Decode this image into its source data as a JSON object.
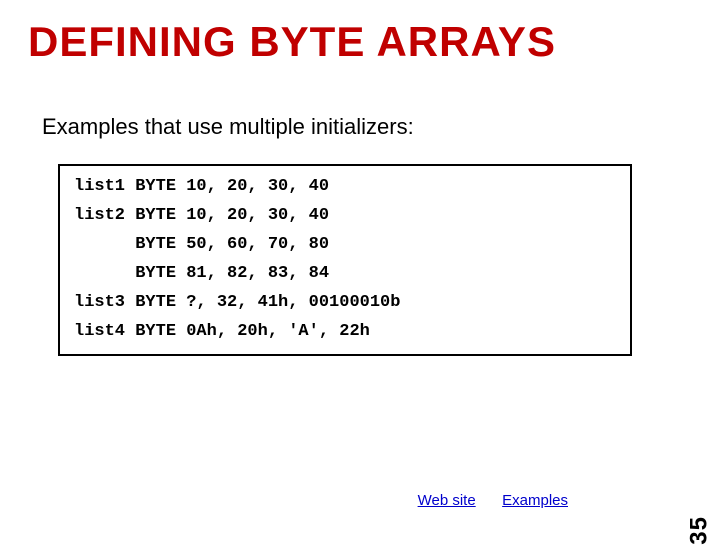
{
  "title": "DEFINING BYTE ARRAYS",
  "subtitle": "Examples that use multiple initializers:",
  "code_lines": [
    "list1 BYTE 10, 20, 30, 40",
    "list2 BYTE 10, 20, 30, 40",
    "      BYTE 50, 60, 70, 80",
    "      BYTE 81, 82, 83, 84",
    "list3 BYTE ?, 32, 41h, 00100010b",
    "list4 BYTE 0Ah, 20h, 'A', 22h"
  ],
  "links": {
    "web_site": "Web site",
    "examples": "Examples"
  },
  "page_number": "35",
  "colors": {
    "title_color": "#c00000",
    "text_color": "#000000",
    "link_color": "#0000cc",
    "background": "#ffffff",
    "border_color": "#000000"
  }
}
